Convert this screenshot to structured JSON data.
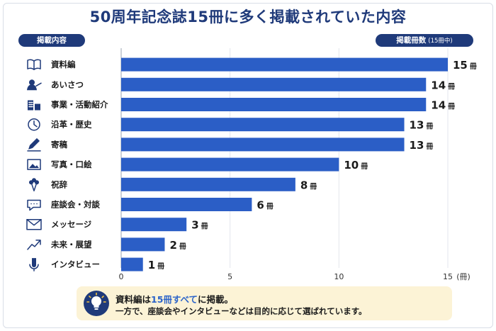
{
  "header": {
    "title": "50周年記念誌15冊に多く掲載されていた内容",
    "left_label": "掲載内容",
    "right_label": "掲載冊数",
    "right_label_sub": "(15冊中)"
  },
  "chart_data": {
    "type": "bar",
    "orientation": "horizontal",
    "title": "50周年記念誌15冊に多く掲載されていた内容",
    "categories": [
      "資料編",
      "あいさつ",
      "事業・活動紹介",
      "沿革・歴史",
      "寄稿",
      "写真・口絵",
      "祝辞",
      "座談会・対談",
      "メッセージ",
      "未来・展望",
      "インタビュー"
    ],
    "icons": [
      "book-icon",
      "person-icon",
      "building-icon",
      "clock-icon",
      "pen-icon",
      "photo-icon",
      "bouquet-icon",
      "chat-icon",
      "mail-icon",
      "trend-icon",
      "microphone-icon"
    ],
    "values": [
      15,
      14,
      14,
      13,
      13,
      10,
      8,
      6,
      3,
      2,
      1
    ],
    "value_unit": "冊",
    "xlim": [
      0,
      15
    ],
    "xticks": [
      "0",
      "5",
      "10",
      "15"
    ],
    "x_unit_label": "(冊)",
    "grid": "vertical",
    "bar_color": "#2b5ec6"
  },
  "note": {
    "line1_before": "資料編は",
    "line1_highlight": "15冊すべて",
    "line1_after": "に掲載。",
    "line2": "一方で、座談会やインタビューなどは目的に応じて選ばれています。"
  },
  "colors": {
    "navy": "#1f3a7a",
    "bar": "#2b5ec6",
    "highlight": "#2b63c9",
    "note_bg": "#fcf3d6"
  }
}
